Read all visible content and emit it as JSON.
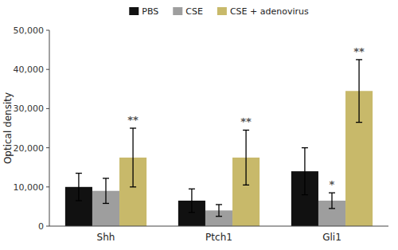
{
  "chart_data": {
    "type": "bar",
    "categories": [
      "Shh",
      "Ptch1",
      "Gli1"
    ],
    "series": [
      {
        "name": "PBS",
        "color": "#111111",
        "values": [
          10000,
          6500,
          14000
        ],
        "errors": [
          3500,
          3000,
          6000
        ]
      },
      {
        "name": "CSE",
        "color": "#9e9e9e",
        "values": [
          9000,
          4000,
          6500
        ],
        "errors": [
          3200,
          1500,
          2000
        ]
      },
      {
        "name": "CSE + adenovirus",
        "color": "#c8b96a",
        "values": [
          17500,
          17500,
          34500
        ],
        "errors": [
          7500,
          7000,
          8000
        ]
      }
    ],
    "ylabel": "Optical density",
    "ylim": [
      0,
      50000
    ],
    "yticks": [
      0,
      {
        "value": 10000,
        "label": "10,000"
      },
      {
        "value": 20000,
        "label": "20,000"
      },
      {
        "value": 30000,
        "label": "30,000"
      },
      {
        "value": 40000,
        "label": "40,000"
      },
      {
        "value": 50000,
        "label": "50,000"
      }
    ],
    "grid": false,
    "legend": "top",
    "annotations": [
      {
        "text": "**",
        "category": "Shh",
        "series": "CSE + adenovirus",
        "color": "#555555"
      },
      {
        "text": "**",
        "category": "Ptch1",
        "series": "CSE + adenovirus",
        "color": "#555555"
      },
      {
        "text": "**",
        "category": "Gli1",
        "series": "CSE + adenovirus",
        "color": "#555555"
      },
      {
        "text": "*",
        "category": "Gli1",
        "series": "CSE",
        "color": "#555555"
      }
    ]
  }
}
